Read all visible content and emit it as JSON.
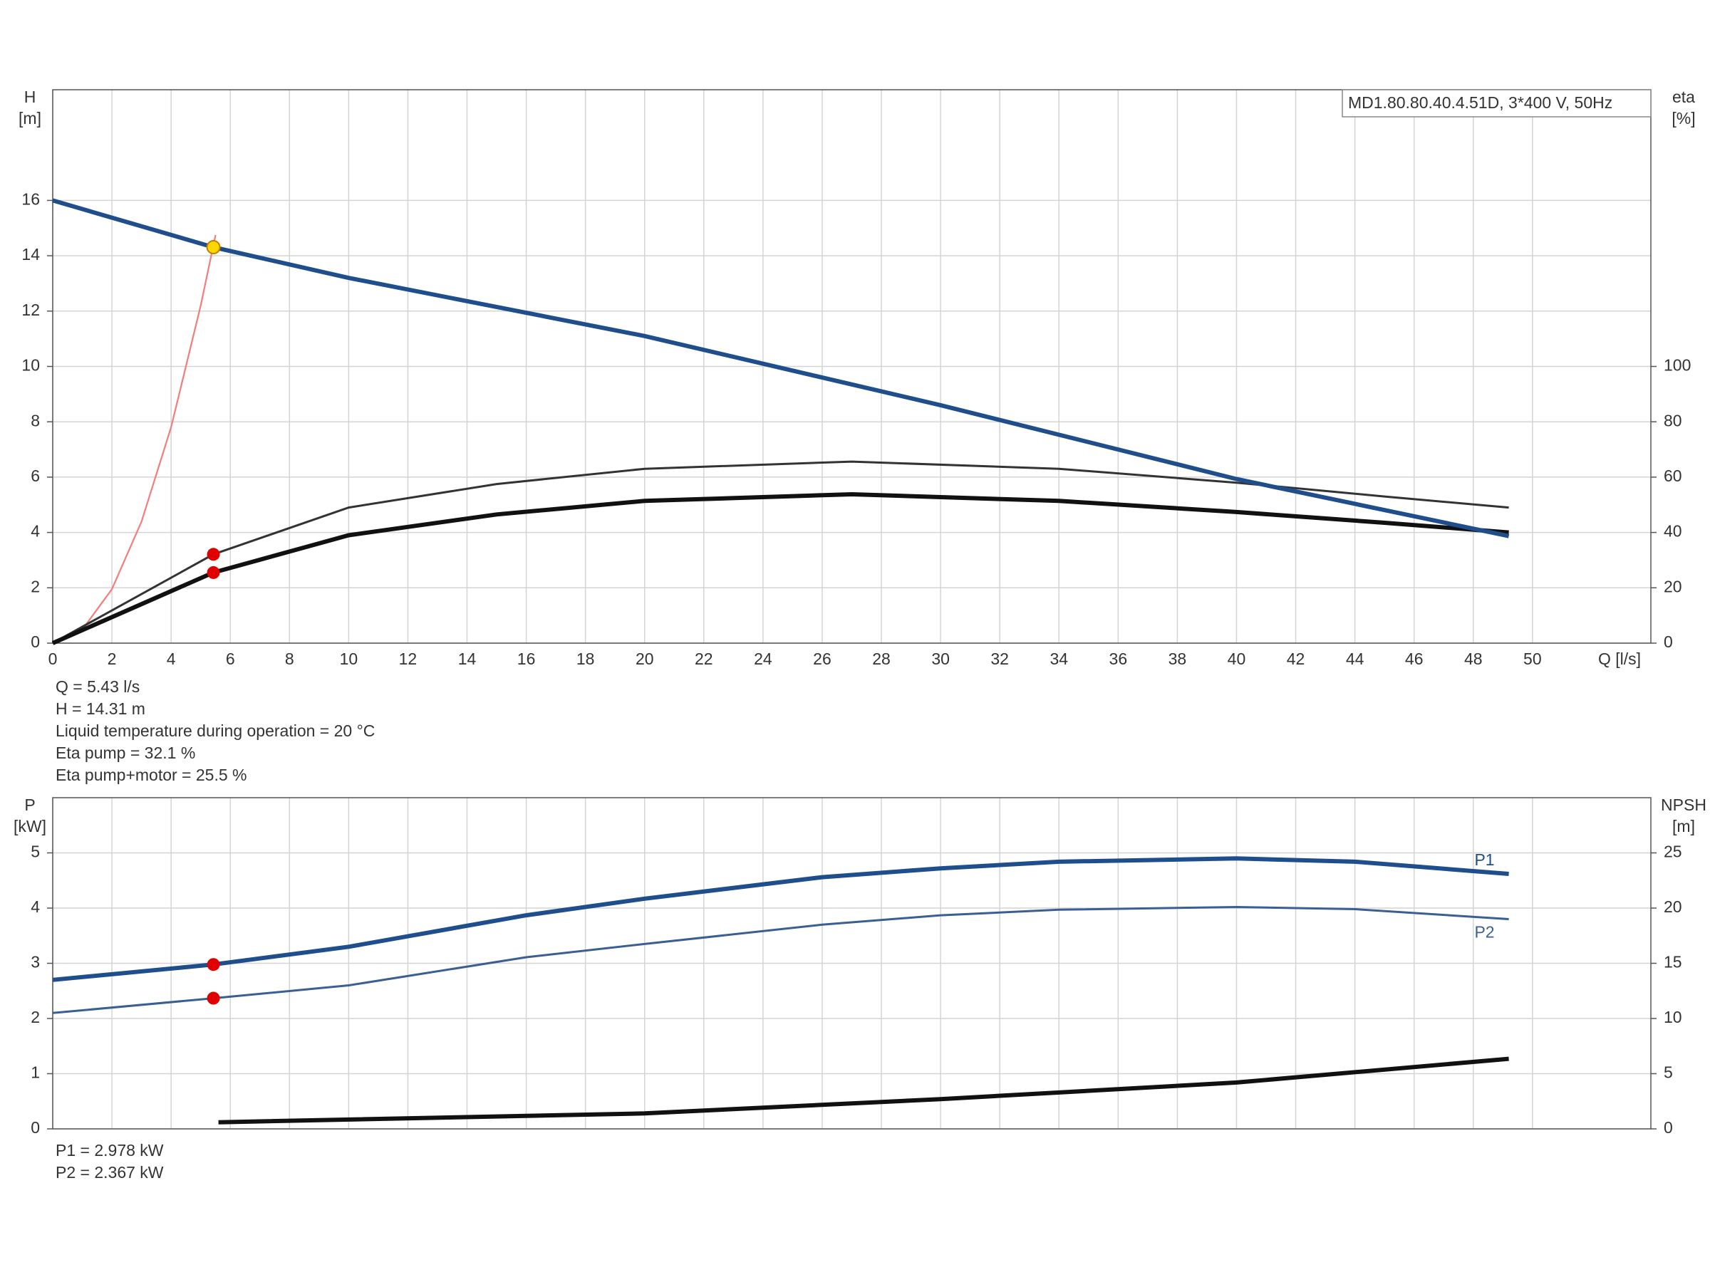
{
  "chart_data": [
    {
      "type": "line",
      "title": "MD1.80.80.40.4.51D, 3*400 V, 50Hz",
      "ylabel": [
        "H",
        "[m]"
      ],
      "y2label": [
        "eta",
        "[%]"
      ],
      "xlabel": "Q [l/s]",
      "xlim": [
        0,
        54
      ],
      "xticks": [
        0,
        2,
        4,
        6,
        8,
        10,
        12,
        14,
        16,
        18,
        20,
        22,
        24,
        26,
        28,
        30,
        32,
        34,
        36,
        38,
        40,
        42,
        44,
        46,
        48,
        50
      ],
      "ylim": [
        0,
        20
      ],
      "yticks": [
        0,
        2,
        4,
        6,
        8,
        10,
        12,
        14,
        16
      ],
      "y2lim": [
        0,
        200
      ],
      "y2ticks": [
        0,
        20,
        40,
        60,
        80,
        100
      ],
      "grid": true,
      "series": [
        {
          "color": "#f08080",
          "line_width": 1.5,
          "x": [
            0,
            1,
            2,
            3,
            4,
            5,
            5.5
          ],
          "values": [
            0,
            0.49,
            1.95,
            4.39,
            7.8,
            12.2,
            14.75
          ]
        },
        {
          "color": "#333333",
          "line_width": 2,
          "axis": "y2",
          "x": [
            0,
            5.43,
            10,
            15,
            20,
            27,
            34,
            40,
            45,
            49.2
          ],
          "values": [
            0,
            32.1,
            49,
            57.5,
            63,
            65.6,
            63,
            58,
            53,
            49
          ]
        },
        {
          "color": "#111111",
          "line_width": 4,
          "axis": "y2",
          "x": [
            0,
            5.43,
            10,
            15,
            20,
            27,
            34,
            40,
            45,
            49.2
          ],
          "values": [
            0,
            25.5,
            39,
            46.5,
            51.4,
            53.8,
            51.4,
            47.4,
            43.5,
            40
          ]
        },
        {
          "color": "#1f4e8c",
          "line_width": 4,
          "x": [
            0,
            5.43,
            10,
            20,
            30,
            40,
            49.2
          ],
          "values": [
            16,
            14.31,
            13.2,
            11.1,
            8.6,
            5.93,
            3.87
          ]
        }
      ],
      "markers": [
        {
          "x": 5.43,
          "y": 14.31,
          "color": "#ffd700"
        },
        {
          "x": 5.43,
          "y": 32.1,
          "color": "#e00000",
          "axis": "y2"
        },
        {
          "x": 5.43,
          "y": 25.5,
          "color": "#e00000",
          "axis": "y2"
        }
      ],
      "annotations": [
        "Q = 5.43 l/s",
        "H = 14.31 m",
        "Liquid temperature during operation = 20 °C",
        "Eta pump = 32.1 %",
        "Eta pump+motor = 25.5 %"
      ]
    },
    {
      "type": "line",
      "ylabel": [
        "P",
        "[kW]"
      ],
      "y2label": [
        "NPSH",
        "[m]"
      ],
      "xlim": [
        0,
        54
      ],
      "ylim": [
        0,
        6
      ],
      "yticks": [
        0,
        1,
        2,
        3,
        4,
        5
      ],
      "y2lim": [
        0,
        30
      ],
      "y2ticks": [
        0,
        5,
        10,
        15,
        20,
        25
      ],
      "grid": true,
      "series": [
        {
          "name": "P1",
          "color": "#1f4e8c",
          "line_width": 4,
          "x": [
            0,
            5.43,
            10,
            16,
            20,
            26,
            30,
            34,
            40,
            44,
            49.2
          ],
          "values": [
            2.7,
            2.978,
            3.3,
            3.87,
            4.17,
            4.56,
            4.72,
            4.84,
            4.9,
            4.84,
            4.62
          ]
        },
        {
          "name": "P2",
          "color": "#3a5f94",
          "line_width": 2,
          "x": [
            0,
            5.43,
            10,
            16,
            20,
            26,
            30,
            34,
            40,
            44,
            49.2
          ],
          "values": [
            2.1,
            2.367,
            2.6,
            3.11,
            3.35,
            3.7,
            3.87,
            3.97,
            4.02,
            3.98,
            3.8
          ]
        },
        {
          "color": "#111111",
          "line_width": 4,
          "axis": "y2",
          "x": [
            5.6,
            20,
            30,
            40,
            49.2
          ],
          "values": [
            0.6,
            1.4,
            2.7,
            4.2,
            6.35
          ]
        }
      ],
      "markers": [
        {
          "x": 5.43,
          "y": 2.978,
          "color": "#e00000"
        },
        {
          "x": 5.43,
          "y": 2.367,
          "color": "#e00000"
        }
      ],
      "annotations": [
        "P1 = 2.978 kW",
        "P2 = 2.367 kW"
      ]
    }
  ]
}
